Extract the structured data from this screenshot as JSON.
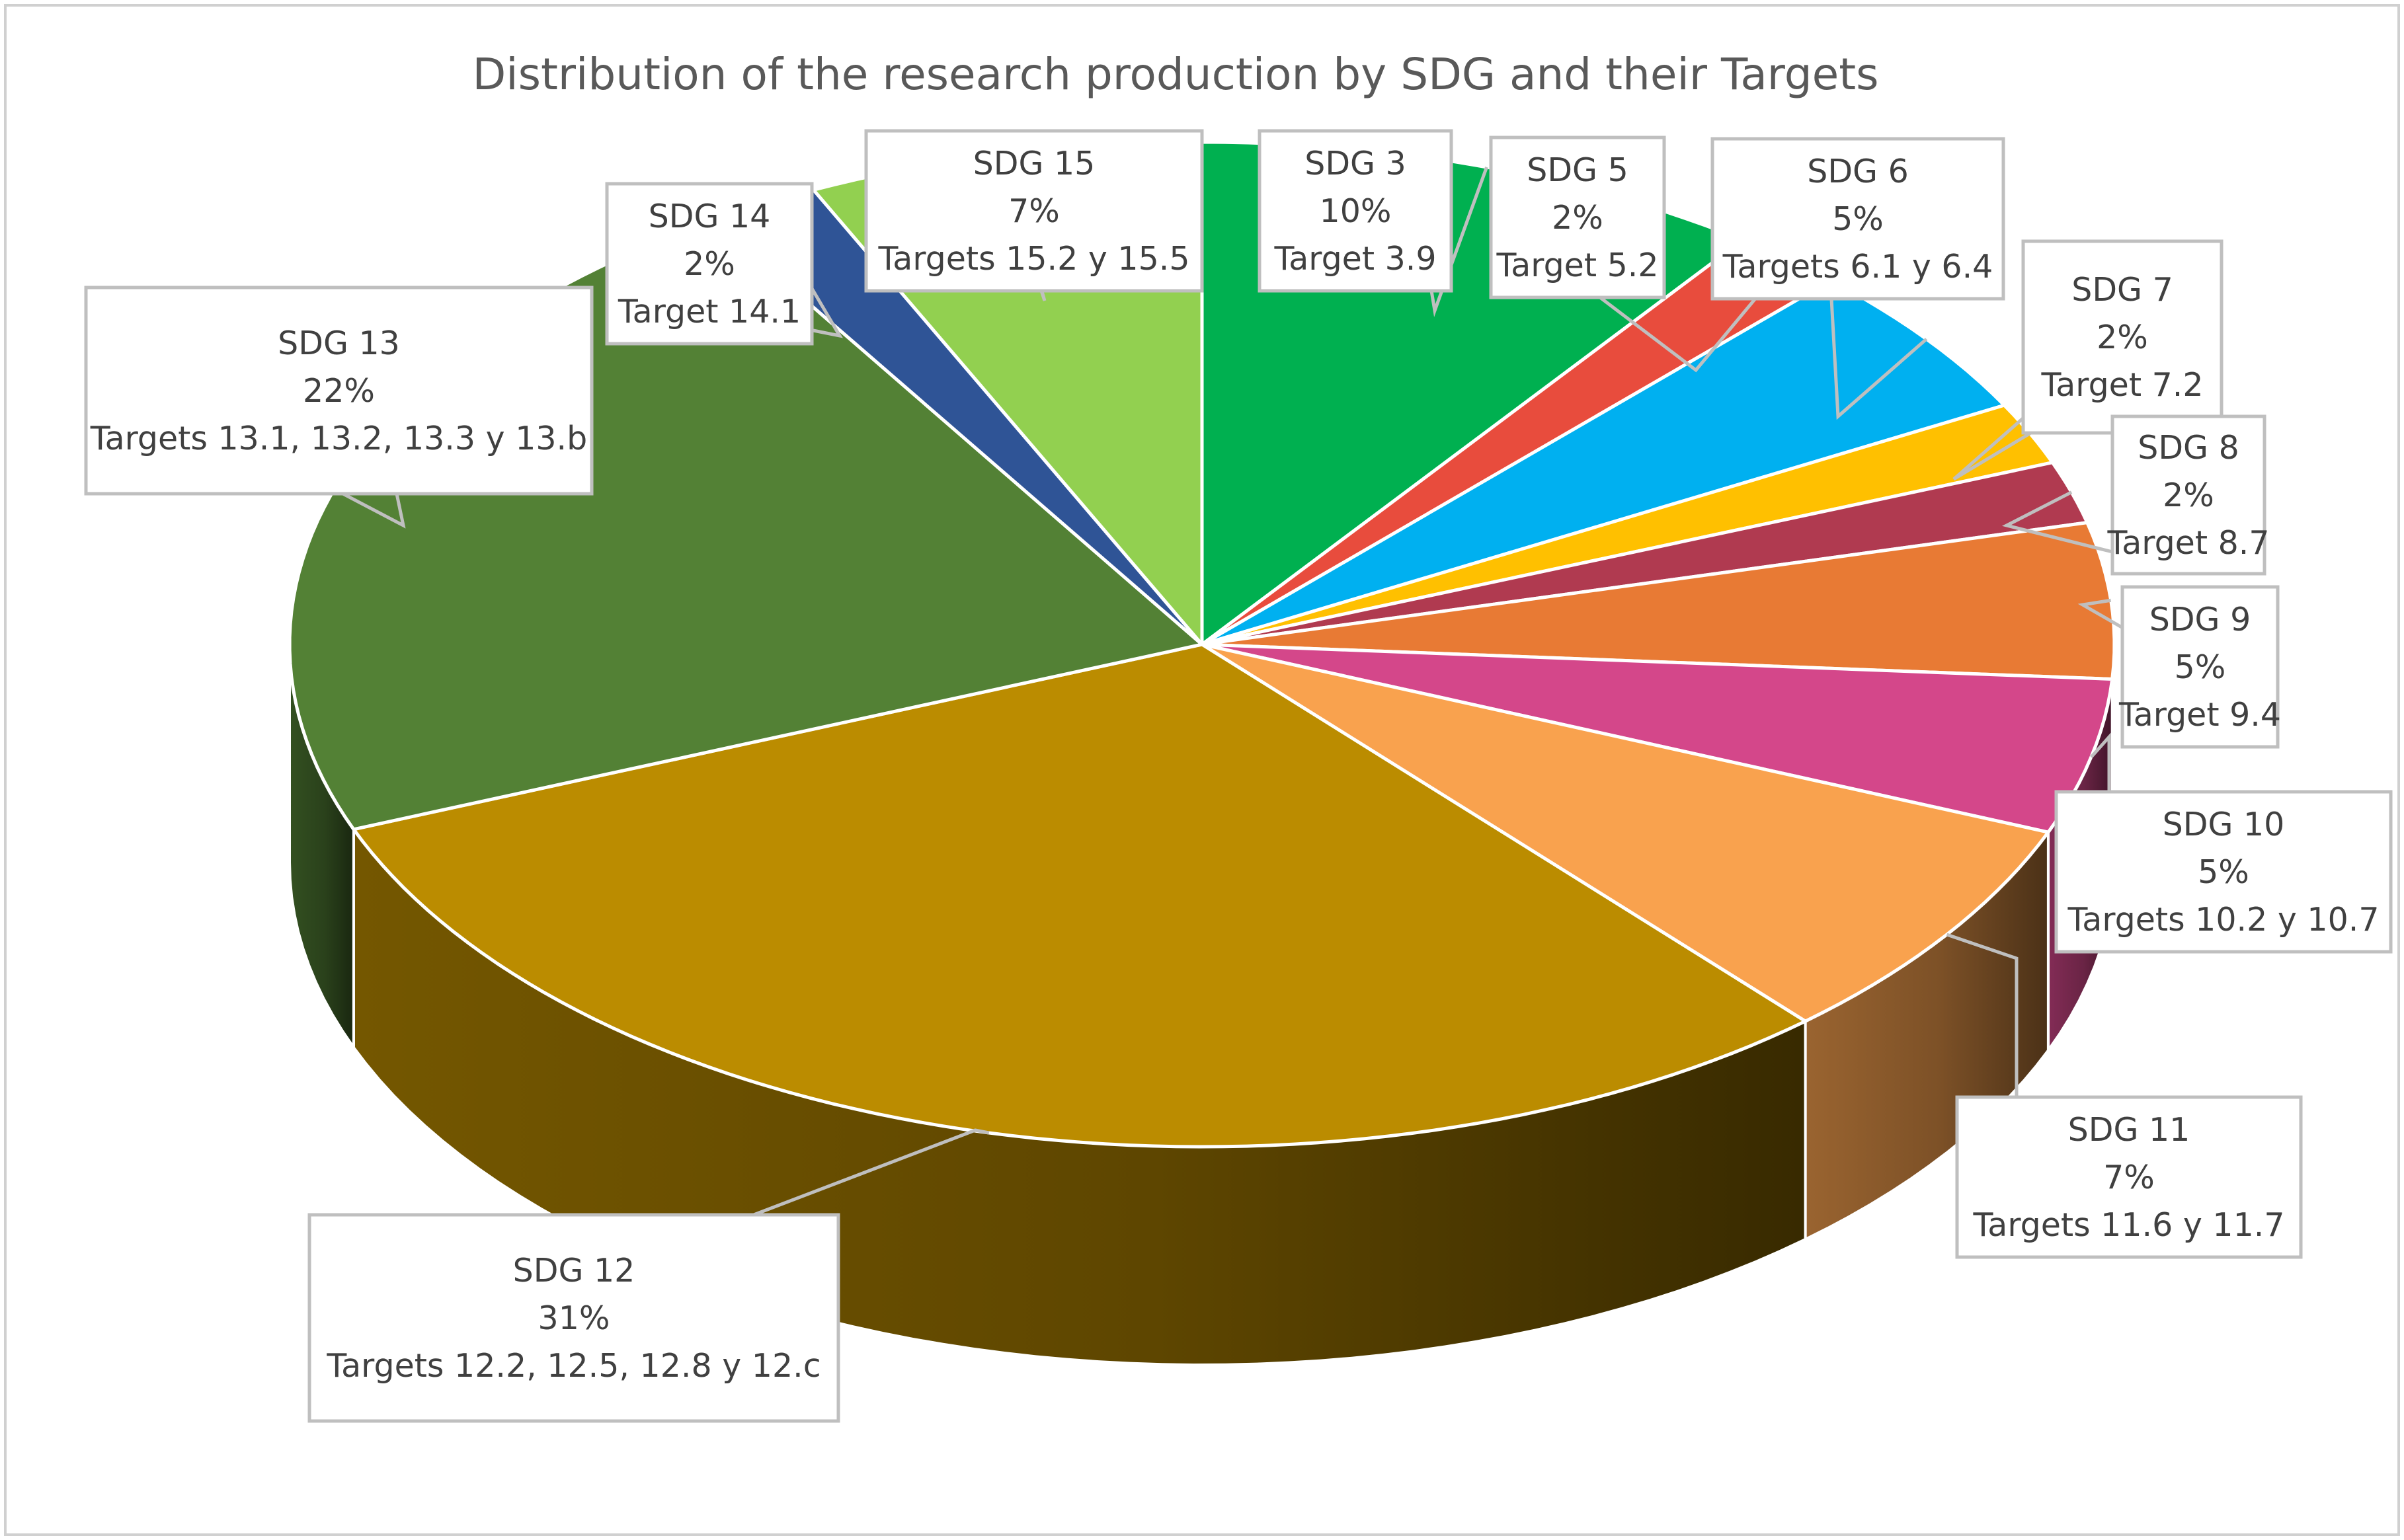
{
  "chart_data": {
    "type": "pie",
    "title": "Distribution of the research production by SDG and their Targets",
    "slices": [
      {
        "name": "SDG 3",
        "percent_label": "10%",
        "targets": "Target 3.9",
        "value": 10.1,
        "color": "#00b050"
      },
      {
        "name": "SDG 5",
        "percent_label": "2%",
        "targets": "Target 5.2",
        "value": 2.0,
        "color": "#e84c3d"
      },
      {
        "name": "SDG 6",
        "percent_label": "5%",
        "targets": "Targets 6.1 y 6.4",
        "value": 5.0,
        "color": "#00b0f0"
      },
      {
        "name": "SDG 7",
        "percent_label": "2%",
        "targets": "Target 7.2",
        "value": 2.0,
        "color": "#ffc000"
      },
      {
        "name": "SDG 8",
        "percent_label": "2%",
        "targets": "Target 8.7",
        "value": 2.0,
        "color": "#b03a50"
      },
      {
        "name": "SDG 9",
        "percent_label": "5%",
        "targets": "Target 9.4",
        "value": 5.0,
        "color": "#e87a34"
      },
      {
        "name": "SDG 10",
        "percent_label": "5%",
        "targets": "Targets 10.2 y 10.7",
        "value": 5.0,
        "color": "#d4478a"
      },
      {
        "name": "SDG 11",
        "percent_label": "7%",
        "targets": "Targets 11.6 y 11.7",
        "value": 7.4,
        "color": "#f9a24e"
      },
      {
        "name": "SDG 12",
        "percent_label": "31%",
        "targets": "Targets 12.2, 12.5, 12.8 y 12.c",
        "value": 30.5,
        "color": "#bb8c00"
      },
      {
        "name": "SDG 13",
        "percent_label": "22%",
        "targets": "Targets 13.1, 13.2, 13.3 y 13.b",
        "value": 22.0,
        "color": "#538135"
      },
      {
        "name": "SDG 14",
        "percent_label": "2%",
        "targets": "Target 14.1",
        "value": 2.0,
        "color": "#2f5496"
      },
      {
        "name": "SDG 15",
        "percent_label": "7%",
        "targets": "Targets 15.2 y 15.5",
        "value": 7.0,
        "color": "#92d050"
      }
    ],
    "start_angle_deg": 0,
    "direction": "clockwise",
    "legend": "none"
  }
}
